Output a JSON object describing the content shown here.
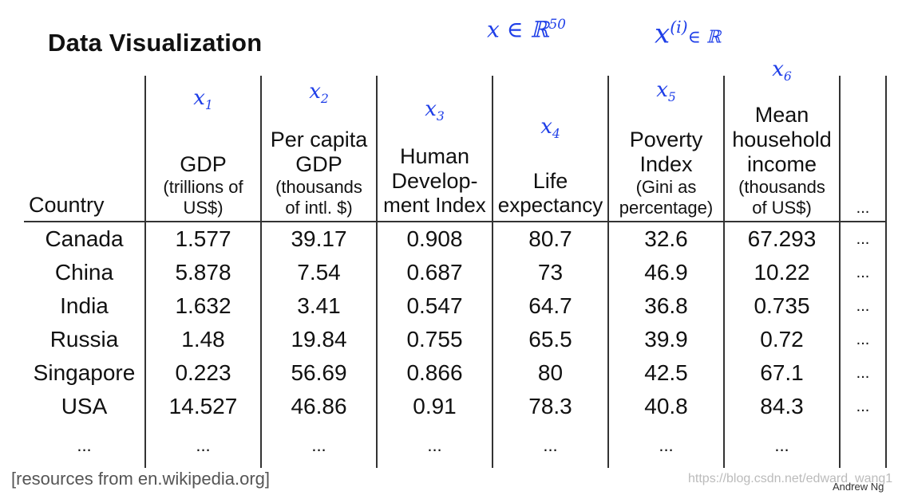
{
  "title": "Data Visualization",
  "annotations": {
    "x_in_r50": "x ∈ ℝ",
    "x_in_r50_exp": "50",
    "xi_in_r": "x",
    "xi_sup": "(i)",
    "xi_set": "∈ ℝ"
  },
  "table": {
    "header": {
      "country": "Country",
      "more": "...",
      "columns": [
        {
          "ink": "x",
          "ink_sub": "1",
          "main": "GDP",
          "sub1": "(trillions of",
          "sub2": "US$)"
        },
        {
          "ink": "x",
          "ink_sub": "2",
          "main": "Per capita",
          "main2": "GDP",
          "sub1": "(thousands",
          "sub2": "of intl. $)"
        },
        {
          "ink": "x",
          "ink_sub": "3",
          "main": "Human",
          "main2": "Develop-",
          "sub1": "ment Index"
        },
        {
          "ink": "x",
          "ink_sub": "4",
          "main": "Life",
          "sub1": "expectancy"
        },
        {
          "ink": "x",
          "ink_sub": "5",
          "main": "Poverty",
          "main2": "Index",
          "sub1": "(Gini as",
          "sub2": "percentage)"
        },
        {
          "ink": "x",
          "ink_sub": "6",
          "main": "Mean",
          "main2": "household",
          "main3": "income",
          "sub1": "(thousands",
          "sub2": "of US$)"
        }
      ]
    },
    "rows": [
      {
        "country": "Canada",
        "values": [
          "1.577",
          "39.17",
          "0.908",
          "80.7",
          "32.6",
          "67.293"
        ],
        "more": "..."
      },
      {
        "country": "China",
        "values": [
          "5.878",
          "7.54",
          "0.687",
          "73",
          "46.9",
          "10.22"
        ],
        "more": "..."
      },
      {
        "country": "India",
        "values": [
          "1.632",
          "3.41",
          "0.547",
          "64.7",
          "36.8",
          "0.735"
        ],
        "more": "..."
      },
      {
        "country": "Russia",
        "values": [
          "1.48",
          "19.84",
          "0.755",
          "65.5",
          "39.9",
          "0.72"
        ],
        "more": "..."
      },
      {
        "country": "Singapore",
        "values": [
          "0.223",
          "56.69",
          "0.866",
          "80",
          "42.5",
          "67.1"
        ],
        "more": "..."
      },
      {
        "country": "USA",
        "values": [
          "14.527",
          "46.86",
          "0.91",
          "78.3",
          "40.8",
          "84.3"
        ],
        "more": "..."
      },
      {
        "country": "...",
        "values": [
          "...",
          "...",
          "...",
          "...",
          "...",
          "..."
        ],
        "more": ""
      }
    ]
  },
  "source": "[resources from en.wikipedia.org]",
  "watermark": "https://blog.csdn.net/edward_wang1",
  "author": "Andrew Ng"
}
